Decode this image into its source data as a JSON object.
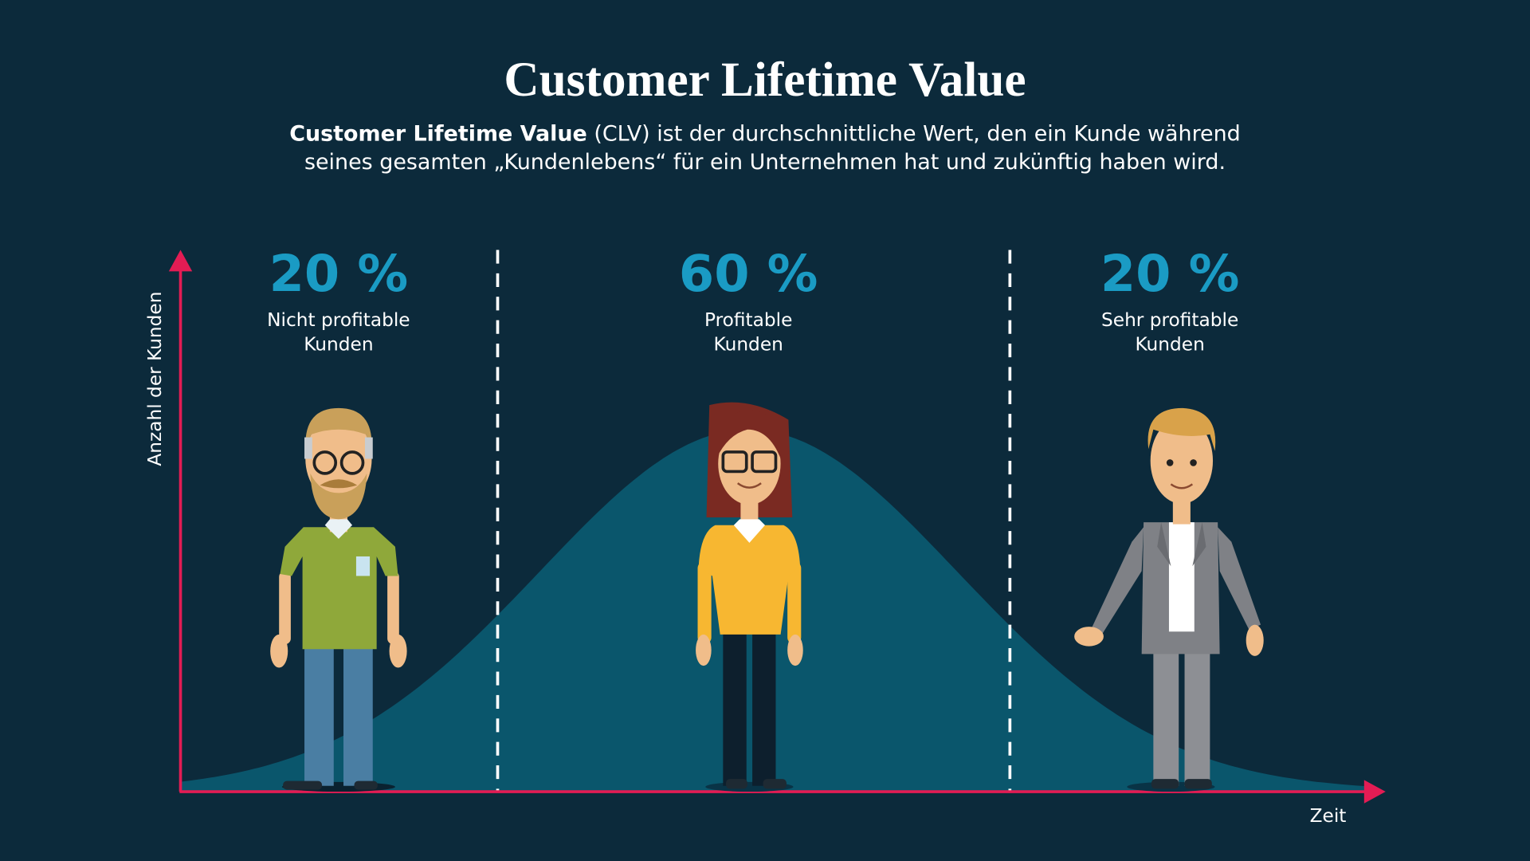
{
  "header": {
    "title": "Customer Lifetime Value",
    "description": {
      "bold": "Customer Lifetime Value",
      "line1_rest": " (CLV) ist der durchschnittliche Wert, den ein Kunde während",
      "line2": "seines gesamten „Kundenlebens“ für ein Unternehmen hat und zukünftig haben wird."
    }
  },
  "axes": {
    "y_label": "Anzahl der Kunden",
    "x_label": "Zeit"
  },
  "segments": [
    {
      "percent": "20 %",
      "label": [
        "Nicht profitable",
        "Kunden"
      ]
    },
    {
      "percent": "60 %",
      "label": [
        "Profitable",
        "Kunden"
      ]
    },
    {
      "percent": "20 %",
      "label": [
        "Sehr profitable",
        "Kunden"
      ]
    }
  ]
}
